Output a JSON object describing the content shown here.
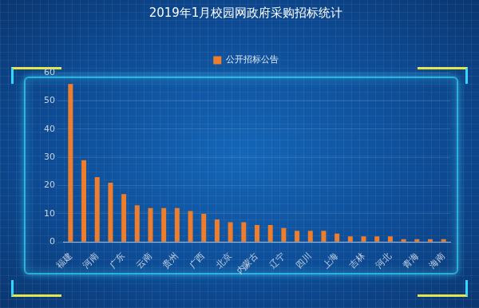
{
  "chart_data": {
    "type": "bar",
    "title": "2019年1月校园网政府采购招标统计",
    "categories": [
      "福建",
      null,
      "河南",
      null,
      "广东",
      null,
      "云南",
      null,
      "贵州",
      null,
      "广西",
      null,
      "北京",
      null,
      "内蒙古",
      null,
      "辽宁",
      null,
      "四川",
      null,
      "上海",
      null,
      "吉林",
      null,
      "河北",
      null,
      "青海",
      null,
      "海南"
    ],
    "series": [
      {
        "name": "公开招标公告",
        "color": "#ee7d2c",
        "values": [
          56,
          29,
          23,
          21,
          17,
          13,
          12,
          12,
          12,
          11,
          10,
          8,
          7,
          7,
          6,
          6,
          5,
          4,
          4,
          4,
          3,
          2,
          2,
          2,
          2,
          1,
          1,
          1,
          1
        ]
      }
    ],
    "ylim": [
      0,
      60
    ],
    "yticks": [
      0,
      10,
      20,
      30,
      40,
      50,
      60
    ],
    "grid": true,
    "legend": "top"
  }
}
